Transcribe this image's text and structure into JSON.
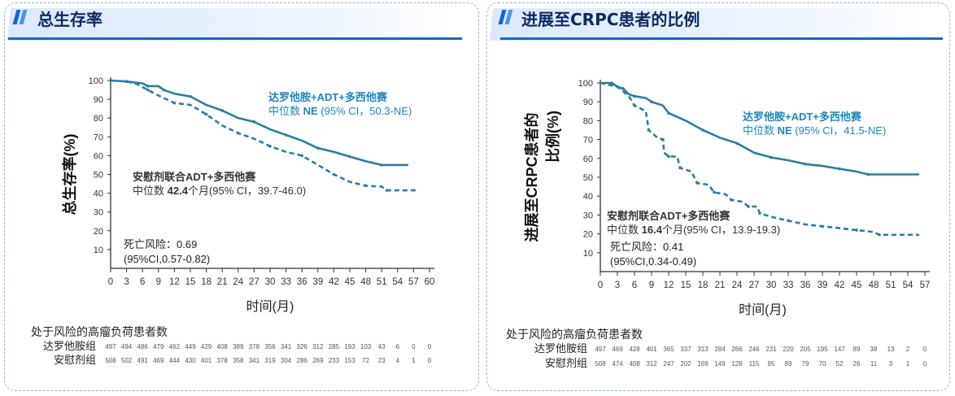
{
  "panels": [
    {
      "title": "总生存率",
      "risk_title": "处于风险的高瘤负荷患者数"
    },
    {
      "title": "进展至CRPC患者的比例",
      "risk_title": "处于风险的高瘤负荷患者数"
    }
  ],
  "colors": {
    "accent": "#1565d8",
    "title": "#0d2a66",
    "curve": "#2a7fa6",
    "dar_text": "#1a86c0",
    "pbo_text": "#333333"
  },
  "chart_data": [
    {
      "type": "line",
      "title": "总生存率",
      "xlabel": "时间(月)",
      "ylabel": "总生存率(%)",
      "xlim": [
        0,
        60
      ],
      "ylim": [
        0,
        100
      ],
      "xticks": [
        0,
        3,
        6,
        9,
        12,
        15,
        18,
        21,
        24,
        27,
        30,
        33,
        36,
        39,
        42,
        45,
        48,
        51,
        54,
        57,
        60
      ],
      "yticks": [
        10,
        20,
        30,
        40,
        50,
        60,
        70,
        80,
        90,
        100
      ],
      "series": [
        {
          "name": "达罗他胺+ADT+多西他赛",
          "style": "solid",
          "median_label": "中位数 ",
          "median_value": "NE",
          "ci": " (95% CI，50.3-NE)",
          "x": [
            0,
            3,
            6,
            7,
            9,
            10,
            12,
            15,
            18,
            21,
            24,
            27,
            30,
            33,
            36,
            39,
            42,
            45,
            48,
            51,
            56
          ],
          "y": [
            100,
            99.5,
            98.5,
            97,
            97,
            95,
            93,
            91.5,
            87,
            84,
            80,
            78,
            74,
            71,
            68,
            64,
            62,
            59.5,
            57,
            55,
            55
          ]
        },
        {
          "name": "安慰剂联合ADT+多西他赛",
          "style": "dashed",
          "median_label": "中位数 ",
          "median_value": "42.4",
          "ci": "个月(95% CI，39.7-46.0)",
          "x": [
            0,
            3,
            5,
            7,
            9,
            12,
            15,
            18,
            21,
            24,
            27,
            30,
            33,
            36,
            39,
            42,
            45,
            48,
            51,
            52,
            58
          ],
          "y": [
            100,
            99.5,
            98,
            95,
            92,
            88,
            87,
            82,
            76,
            72,
            69,
            65,
            62,
            60,
            55,
            50,
            46,
            44,
            43.5,
            41.5,
            41.5
          ]
        }
      ],
      "hr_line1": "死亡风险：0.69",
      "hr_line2": "(95%CI,0.57-0.82)",
      "risk_table": {
        "rows": [
          {
            "label": "达罗他胺组",
            "values": [
              497,
              494,
              486,
              479,
              462,
              449,
              429,
              408,
              389,
              378,
              356,
              341,
              326,
              312,
              285,
              193,
              103,
              43,
              6,
              0,
              0
            ]
          },
          {
            "label": "安慰剂组",
            "values": [
              508,
              502,
              491,
              469,
              444,
              430,
              401,
              378,
              358,
              341,
              319,
              304,
              286,
              269,
              233,
              153,
              72,
              23,
              4,
              1,
              0
            ]
          }
        ]
      }
    },
    {
      "type": "line",
      "title": "进展至CRPC患者的比例",
      "xlabel": "时间(月)",
      "ylabel_line1": "进展至CRPC患者的",
      "ylabel_line2": "比例(%)",
      "xlim": [
        0,
        57
      ],
      "ylim": [
        0,
        100
      ],
      "xticks": [
        0,
        3,
        6,
        9,
        12,
        15,
        18,
        21,
        24,
        27,
        30,
        33,
        36,
        39,
        42,
        45,
        48,
        51,
        54,
        57
      ],
      "yticks": [
        10,
        20,
        30,
        40,
        50,
        60,
        70,
        80,
        90,
        100
      ],
      "series": [
        {
          "name": "达罗他胺+ADT+多西他赛",
          "style": "solid",
          "median_label": "中位数 ",
          "median_value": "NE",
          "ci": " (95% CI，41.5-NE)",
          "x": [
            0,
            2,
            3,
            4,
            5,
            6,
            8,
            9,
            11,
            12,
            15,
            18,
            21,
            24,
            27,
            30,
            33,
            36,
            39,
            42,
            45,
            47,
            56
          ],
          "y": [
            100,
            100,
            98,
            97,
            94,
            93,
            92,
            90,
            88,
            84,
            80,
            75,
            71,
            68,
            63,
            60.5,
            59,
            57,
            56,
            54.5,
            53,
            51.5,
            51.5
          ]
        },
        {
          "name": "安慰剂联合ADT+多西他赛",
          "style": "dashed",
          "median_label": "中位数 ",
          "median_value": "16.4",
          "ci": "个月(95% CI，13.9-19.3)",
          "x": [
            0,
            3,
            5,
            6,
            8,
            8.5,
            10,
            11,
            11.2,
            12,
            13.5,
            14,
            16,
            17,
            19,
            20,
            22,
            23,
            25,
            26,
            27.5,
            28,
            30,
            33,
            36,
            39,
            42,
            45,
            48,
            49,
            56
          ],
          "y": [
            100,
            98,
            93,
            88,
            85,
            75,
            71,
            70,
            63,
            61,
            61,
            55,
            53,
            47,
            46,
            42,
            41,
            38,
            37,
            34.5,
            34.5,
            31,
            29,
            27,
            25,
            24,
            23,
            22,
            21,
            19.5,
            19.5
          ]
        }
      ],
      "hr_line1": "死亡风险：0.41",
      "hr_line2": "(95%CI,0.34-0.49)",
      "risk_table": {
        "rows": [
          {
            "label": "达罗他胺组",
            "values": [
              497,
              469,
              428,
              401,
              365,
              337,
              313,
              284,
              266,
              246,
              231,
              220,
              205,
              195,
              147,
              89,
              38,
              13,
              2,
              0
            ]
          },
          {
            "label": "安慰剂组",
            "values": [
              508,
              474,
              408,
              312,
              247,
              202,
              169,
              149,
              128,
              115,
              95,
              89,
              79,
              70,
              52,
              26,
              11,
              3,
              1,
              0
            ]
          }
        ]
      }
    }
  ]
}
